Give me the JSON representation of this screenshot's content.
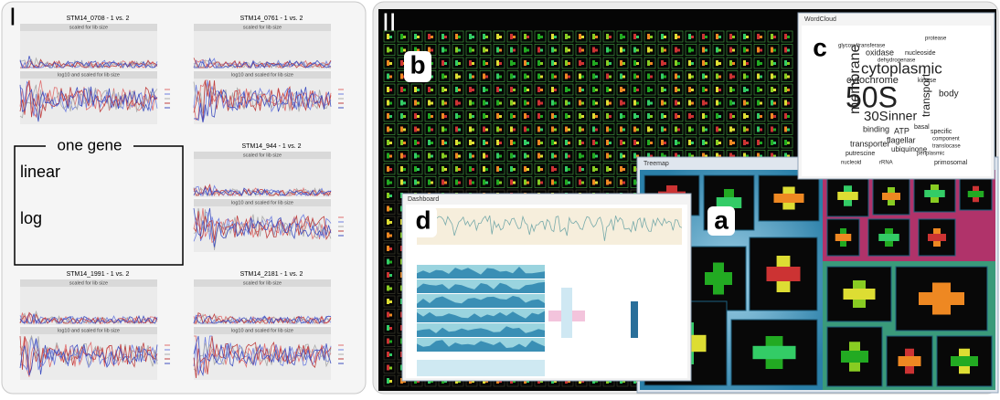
{
  "panel_i": {
    "label": "I",
    "plots": [
      {
        "title": "STM14_0708 - 1 vs. 2",
        "top_strip": "scaled for lib size",
        "bottom_strip": "log10 and scaled for lib size"
      },
      {
        "title": "STM14_0761 - 1 vs. 2",
        "top_strip": "scaled for lib size",
        "bottom_strip": "log10 and scaled for lib size"
      },
      {
        "title": "STM14_944 - 1 vs. 2",
        "top_strip": "scaled for lib size",
        "bottom_strip": "log10 and scaled for lib size"
      },
      {
        "title": "STM14_1991 - 1 vs. 2",
        "top_strip": "scaled for lib size",
        "bottom_strip": "log10 and scaled for lib size"
      },
      {
        "title": "STM14_2181 - 1 vs. 2",
        "top_strip": "scaled for lib size",
        "bottom_strip": "log10 and scaled for lib size"
      }
    ],
    "annotation": {
      "title": "one gene",
      "top": "linear",
      "bottom": "log"
    }
  },
  "panel_ii": {
    "label": "II",
    "callouts": [
      "a",
      "b",
      "c",
      "d"
    ],
    "windows": {
      "wordcloud": "WordCloud",
      "treemap": "Treemap",
      "dashboard": "Dashboard"
    },
    "words": [
      "50S",
      "membrane",
      "cytoplasmic",
      "30S",
      "inner",
      "transport",
      "cytochrome",
      "binding",
      "ATP",
      "transporter",
      "flagellar",
      "ubiquinone",
      "oxidase",
      "body",
      "kinase",
      "specific",
      "basal",
      "nucleoside",
      "glycosyltransferase",
      "dehydrogenase",
      "putrescine",
      "translocase",
      "nucleoid",
      "primosomal",
      "rRNA",
      "protease",
      "periplasmic",
      "component"
    ]
  }
}
